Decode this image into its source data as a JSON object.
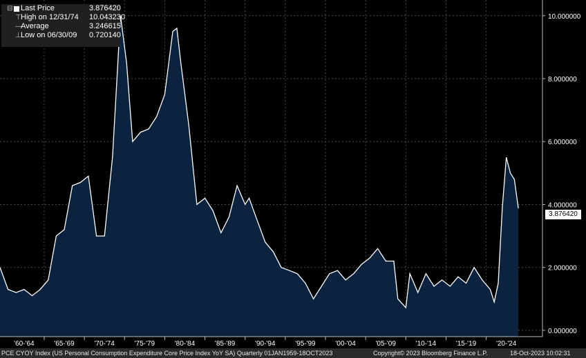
{
  "legend": {
    "last_price_label": "Last Price",
    "last_price_value": "3.876420",
    "high_label": "High on 12/31/74",
    "high_value": "10.043230",
    "average_label": "Average",
    "average_value": "3.246615",
    "low_label": "Low on 06/30/09",
    "low_value": "0.720140"
  },
  "footer": {
    "ticker_description": "PCE CYOY Index (US Personal Consumption Expenditure Core Price Index YoY SA)  Quarterly 01JAN1959-18OCT2023",
    "copyright": "Copyright© 2023 Bloomberg Finance L.P.",
    "timestamp": "18-Oct-2023 10:02:31"
  },
  "colors": {
    "background": "#000000",
    "area_fill": "#0c2340",
    "line": "#ffffff",
    "grid": "#4a4a4a",
    "legend_bg": "#202020"
  },
  "chart_data": {
    "type": "area",
    "series": [
      {
        "name": "PCE CYOY Index",
        "x": [
          1959.0,
          1960.0,
          1961.0,
          1962.0,
          1963.0,
          1964.0,
          1965.0,
          1966.0,
          1967.0,
          1968.0,
          1969.0,
          1970.0,
          1971.0,
          1972.0,
          1973.0,
          1974.0,
          1974.75,
          1975.5,
          1976.5,
          1977.5,
          1978.5,
          1979.5,
          1980.5,
          1981.0,
          1981.5,
          1982.5,
          1983.5,
          1984.5,
          1985.5,
          1986.5,
          1987.5,
          1988.5,
          1989.5,
          1990.0,
          1991.0,
          1992.0,
          1993.0,
          1994.0,
          1995.0,
          1996.0,
          1997.0,
          1998.0,
          1999.0,
          2000.0,
          2001.0,
          2002.0,
          2003.0,
          2004.0,
          2005.0,
          2006.0,
          2007.0,
          2008.0,
          2008.5,
          2009.5,
          2010.0,
          2011.0,
          2012.0,
          2013.0,
          2014.0,
          2015.0,
          2016.0,
          2017.0,
          2018.0,
          2019.0,
          2020.0,
          2020.5,
          2021.0,
          2021.5,
          2022.0,
          2022.5,
          2023.0,
          2023.5
        ],
        "values": [
          2.0,
          1.3,
          1.2,
          1.3,
          1.1,
          1.3,
          1.6,
          3.0,
          3.2,
          4.6,
          4.7,
          4.9,
          3.0,
          3.0,
          5.5,
          10.0,
          8.5,
          6.0,
          6.3,
          6.4,
          6.8,
          7.5,
          9.5,
          9.6,
          8.5,
          6.5,
          4.0,
          4.2,
          3.8,
          3.1,
          3.6,
          4.6,
          4.0,
          4.2,
          3.5,
          2.8,
          2.5,
          2.0,
          1.9,
          1.8,
          1.5,
          1.0,
          1.4,
          1.8,
          1.9,
          1.6,
          1.8,
          2.1,
          2.3,
          2.6,
          2.2,
          2.2,
          1.0,
          0.72,
          1.8,
          1.2,
          1.8,
          1.4,
          1.6,
          1.4,
          1.7,
          1.5,
          2.0,
          1.6,
          1.3,
          0.9,
          1.5,
          3.9,
          5.5,
          5.0,
          4.8,
          3.876
        ]
      }
    ],
    "xlim": [
      1959.0,
      2026.5
    ],
    "ylim": [
      -0.2,
      10.5
    ],
    "x_tick_labels": [
      "'60-'64",
      "'65-'69",
      "'70-'74",
      "'75-'79",
      "'80-'84",
      "'85-'89",
      "'90-'94",
      "'95-'99",
      "'00-'04",
      "'05-'09",
      "'10-'14",
      "'15-'19",
      "'20-'24"
    ],
    "x_tick_centers": [
      1962.0,
      1967.0,
      1972.0,
      1977.0,
      1982.0,
      1987.0,
      1992.0,
      1997.0,
      2002.0,
      2007.0,
      2012.0,
      2017.0,
      2022.0
    ],
    "x_tick_boundaries": [
      1964.5,
      1969.5,
      1974.5,
      1979.5,
      1984.5,
      1989.5,
      1994.5,
      1999.5,
      2004.5,
      2009.5,
      2014.5,
      2019.5
    ],
    "y_ticks": [
      0,
      2,
      4,
      6,
      8,
      10
    ],
    "y_tick_labels": [
      "0.000000",
      "2.000000",
      "4.000000",
      "6.000000",
      "8.000000",
      "10.000000"
    ],
    "last_value_label": "3.876420",
    "grid": true
  }
}
